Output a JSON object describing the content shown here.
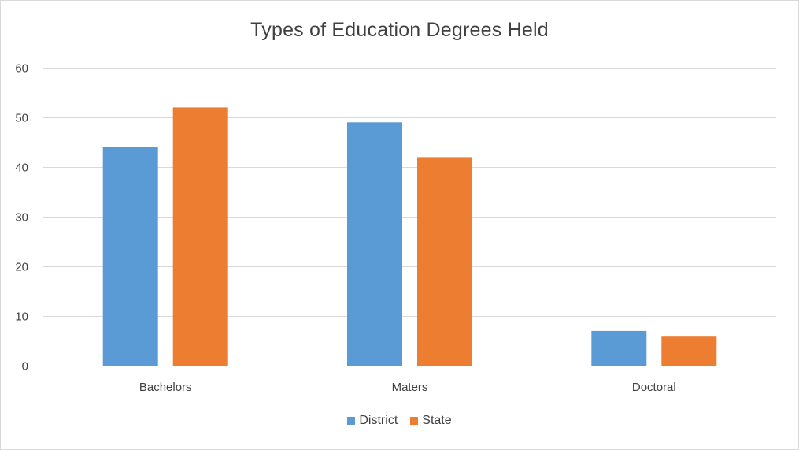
{
  "chart_data": {
    "type": "bar",
    "title": "Types of Education Degrees Held",
    "categories": [
      "Bachelors",
      "Maters",
      "Doctoral"
    ],
    "series": [
      {
        "name": "District",
        "values": [
          44,
          49,
          7
        ],
        "color": "#5b9bd5"
      },
      {
        "name": "State",
        "values": [
          52,
          42,
          6
        ],
        "color": "#ed7d31"
      }
    ],
    "ylim": [
      0,
      60
    ],
    "yticks": [
      0,
      10,
      20,
      30,
      40,
      50,
      60
    ],
    "grid": true,
    "legend_position": "bottom"
  }
}
